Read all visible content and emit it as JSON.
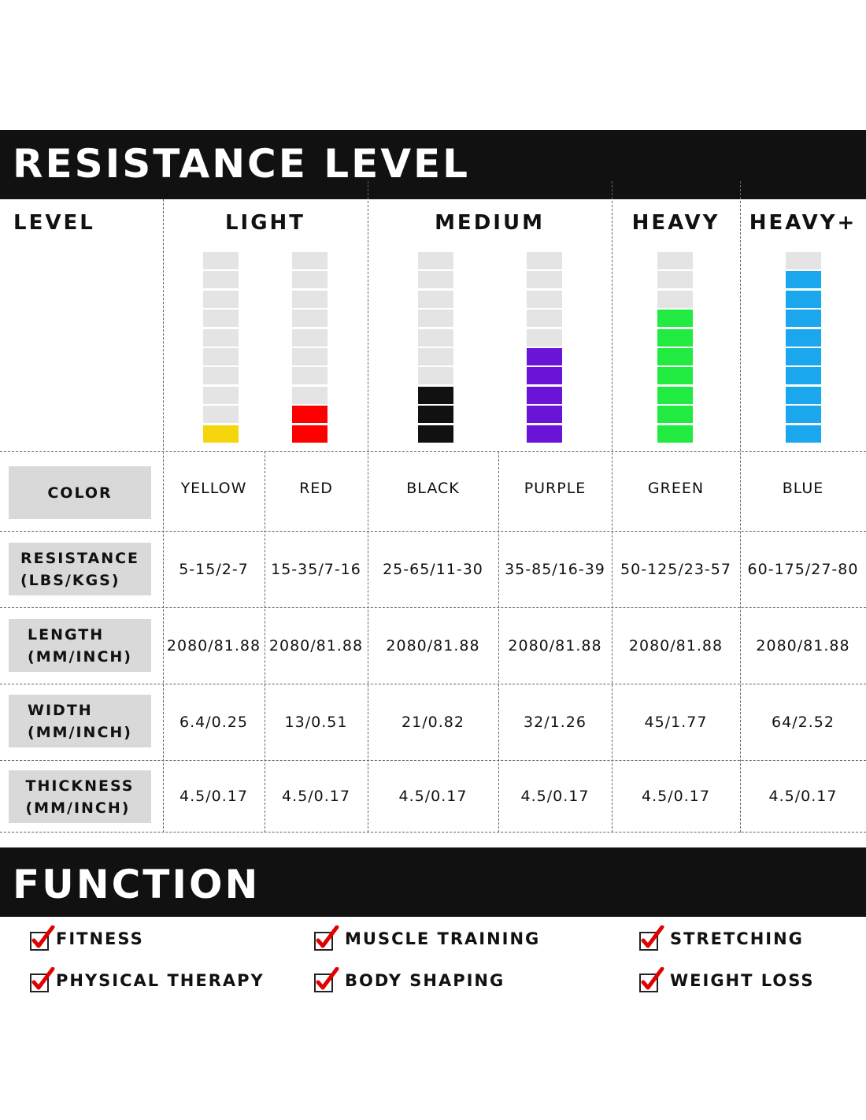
{
  "header": {
    "title": "RESISTANCE LEVEL"
  },
  "levels": {
    "label": "LEVEL",
    "groups": [
      "LIGHT",
      "MEDIUM",
      "HEAVY",
      "HEAVY+"
    ]
  },
  "bands": [
    {
      "color_name": "YELLOW",
      "hex": "#f5d50c",
      "filled": 1,
      "total": 10
    },
    {
      "color_name": "RED",
      "hex": "#ff0000",
      "filled": 2,
      "total": 10
    },
    {
      "color_name": "BLACK",
      "hex": "#111111",
      "filled": 3,
      "total": 10
    },
    {
      "color_name": "PURPLE",
      "hex": "#6a14d8",
      "filled": 5,
      "total": 10
    },
    {
      "color_name": "GREEN",
      "hex": "#21ea41",
      "filled": 7,
      "total": 10
    },
    {
      "color_name": "BLUE",
      "hex": "#1aa7ee",
      "filled": 9,
      "total": 10
    }
  ],
  "rows": [
    {
      "label_line1": "COLOR",
      "label_line2": "",
      "values": [
        "YELLOW",
        "RED",
        "BLACK",
        "PURPLE",
        "GREEN",
        "BLUE"
      ]
    },
    {
      "label_line1": "RESISTANCE",
      "label_line2": "(LBS/KGS)",
      "values": [
        "5-15/2-7",
        "15-35/7-16",
        "25-65/11-30",
        "35-85/16-39",
        "50-125/23-57",
        "60-175/27-80"
      ]
    },
    {
      "label_line1": "LENGTH",
      "label_line2": "(MM/INCH)",
      "values": [
        "2080/81.88",
        "2080/81.88",
        "2080/81.88",
        "2080/81.88",
        "2080/81.88",
        "2080/81.88"
      ]
    },
    {
      "label_line1": "WIDTH",
      "label_line2": "(MM/INCH)",
      "values": [
        "6.4/0.25",
        "13/0.51",
        "21/0.82",
        "32/1.26",
        "45/1.77",
        "64/2.52"
      ]
    },
    {
      "label_line1": "THICKNESS",
      "label_line2": "(MM/INCH)",
      "values": [
        "4.5/0.17",
        "4.5/0.17",
        "4.5/0.17",
        "4.5/0.17",
        "4.5/0.17",
        "4.5/0.17"
      ]
    }
  ],
  "function": {
    "title": "FUNCTION",
    "items": [
      "FITNESS",
      "MUSCLE TRAINING",
      "STRETCHING",
      "PHYSICAL THERAPY",
      "BODY SHAPING",
      "WEIGHT LOSS"
    ],
    "check_icon": "check-icon",
    "check_color": "#e00000"
  }
}
